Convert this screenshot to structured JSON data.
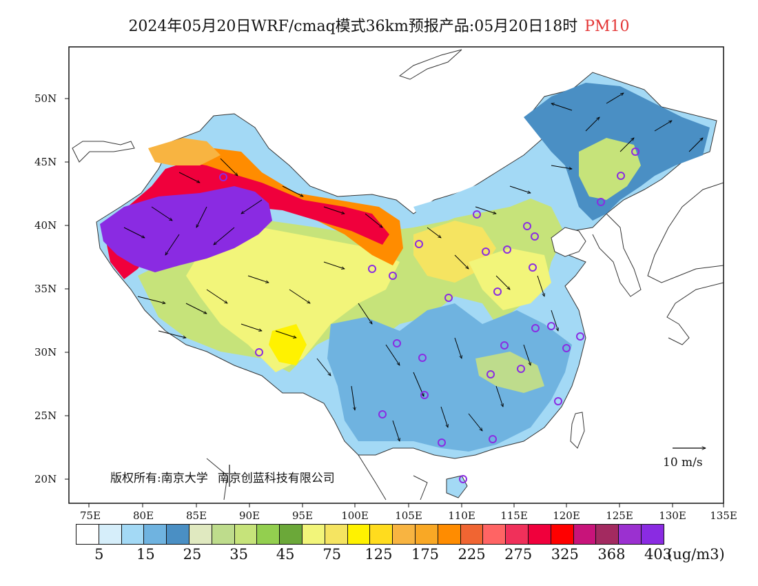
{
  "title": {
    "main": "2024年05月20日WRF/cmaq模式36km预报产品:05月20日18时",
    "variable": "PM10",
    "variable_color": "#e33333"
  },
  "axes": {
    "lon_ticks": [
      "75E",
      "80E",
      "85E",
      "90E",
      "95E",
      "100E",
      "105E",
      "110E",
      "115E",
      "120E",
      "125E",
      "130E",
      "135E"
    ],
    "lat_ticks": [
      "50N",
      "45N",
      "40N",
      "35N",
      "30N",
      "25N",
      "20N"
    ]
  },
  "copyright": {
    "part1": "版权所有:南京大学",
    "part2": "南京创蓝科技有限公司"
  },
  "wind_reference": {
    "label": "10 m/s"
  },
  "legend": {
    "colors": [
      "#ffffff",
      "#d6eefa",
      "#a3d9f5",
      "#6fb3e0",
      "#4a8fc4",
      "#e0e9c0",
      "#bedc8c",
      "#c6e37a",
      "#93cf4f",
      "#6ba839",
      "#f2f57a",
      "#f5e461",
      "#fff200",
      "#ffdc1e",
      "#f8b441",
      "#f9a825",
      "#ff8c00",
      "#f06532",
      "#ff6464",
      "#f0305a",
      "#f0003c",
      "#ff0000",
      "#c8147a",
      "#a32a60",
      "#9b30d0",
      "#8a2be2"
    ],
    "labels": [
      "5",
      "15",
      "25",
      "35",
      "45",
      "75",
      "125",
      "175",
      "225",
      "275",
      "325",
      "368",
      "403"
    ],
    "unit": "(ug/m3)"
  }
}
